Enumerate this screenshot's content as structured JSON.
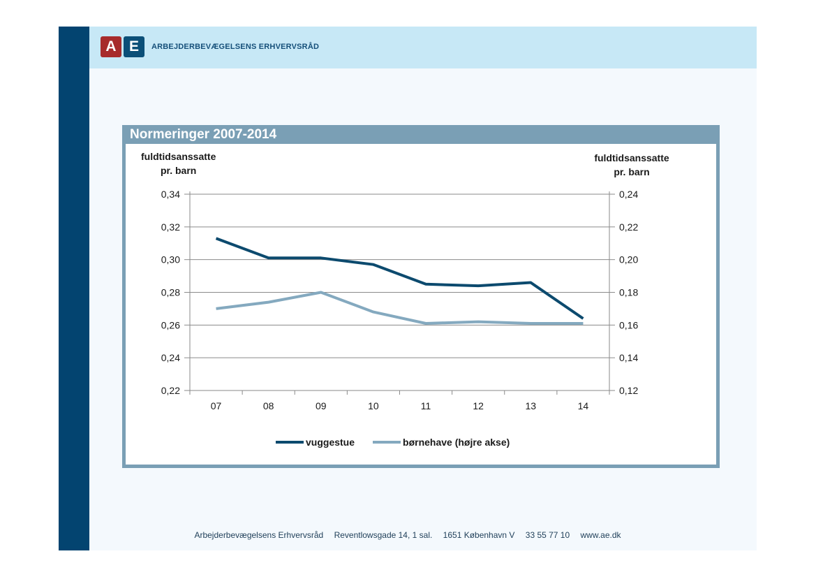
{
  "header": {
    "logo_a": "A",
    "logo_e": "E",
    "org_name": "ARBEJDERBEVÆGELSENS ERHVERVSRÅD"
  },
  "panel": {
    "title": "Normeringer 2007-2014"
  },
  "footer": {
    "org": "Arbejderbevægelsens Erhvervsråd",
    "address": "Reventlowsgade 14, 1 sal.",
    "city": "1651 København V",
    "phone": "33 55 77 10",
    "web": "www.ae.dk"
  },
  "colors": {
    "primary_series": "#0c4a6e",
    "secondary_series": "#84a9bf",
    "panel_frame": "#7a9fb5",
    "left_bar": "#034470",
    "header_band": "#c7e8f6"
  },
  "chart_data": {
    "type": "line",
    "title": "Normeringer 2007-2014",
    "ylabel_left": [
      "fuldtidsanssatte",
      "pr. barn"
    ],
    "ylabel_right": [
      "fuldtidsanssatte",
      "pr. barn"
    ],
    "categories": [
      "07",
      "08",
      "09",
      "10",
      "11",
      "12",
      "13",
      "14"
    ],
    "ylim_left": [
      0.22,
      0.34
    ],
    "ylim_right": [
      0.12,
      0.24
    ],
    "yticks_left": [
      "0,22",
      "0,24",
      "0,26",
      "0,28",
      "0,30",
      "0,32",
      "0,34"
    ],
    "yticks_right": [
      "0,12",
      "0,14",
      "0,16",
      "0,18",
      "0,20",
      "0,22",
      "0,24"
    ],
    "grid": true,
    "legend_position": "bottom",
    "series": [
      {
        "name": "vuggestue",
        "axis": "left",
        "color": "#0c4a6e",
        "values": [
          0.313,
          0.301,
          0.301,
          0.297,
          0.285,
          0.284,
          0.286,
          0.264
        ]
      },
      {
        "name": "børnehave (højre akse)",
        "axis": "right",
        "color": "#84a9bf",
        "values": [
          0.17,
          0.174,
          0.18,
          0.168,
          0.161,
          0.162,
          0.161,
          0.161
        ]
      }
    ]
  }
}
